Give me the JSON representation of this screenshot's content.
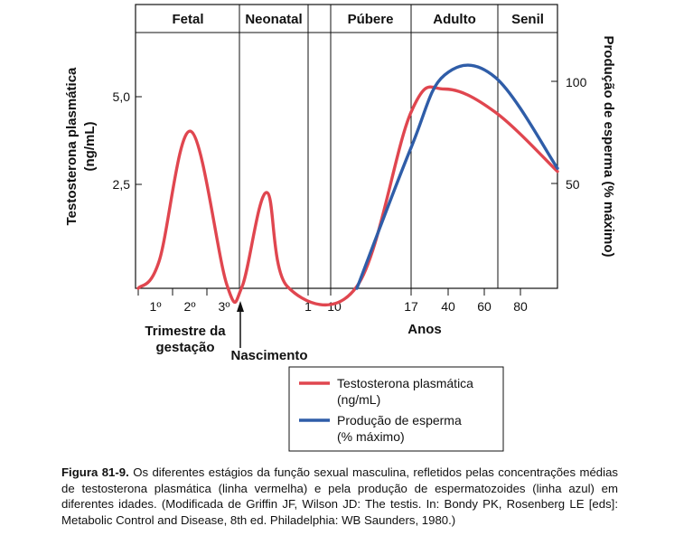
{
  "chart_data": {
    "type": "line",
    "stages": [
      "Fetal",
      "Neonatal",
      "Púbere",
      "Adulto",
      "Senil"
    ],
    "x_tick_labels": [
      "1º",
      "2º",
      "3º",
      "1",
      "10",
      "17",
      "40",
      "60",
      "80"
    ],
    "x_group_labels": {
      "trimester_line1": "Trimestre da",
      "trimester_line2": "gestação",
      "birth": "Nascimento",
      "years": "Anos"
    },
    "y_left": {
      "label_line1": "Testosterona plasmática",
      "label_line2": "(ng/mL)",
      "ticks": [
        2.5,
        5.0
      ],
      "tick_labels": [
        "2,5",
        "5,0"
      ],
      "ylim": [
        0,
        5.8
      ]
    },
    "y_right": {
      "label": "Produção de esperma (% máximo)",
      "ticks": [
        50,
        100
      ],
      "tick_labels": [
        "50",
        "100"
      ],
      "ylim": [
        0,
        116
      ]
    },
    "series": [
      {
        "name": "Testosterona plasmática (ng/mL)",
        "color": "#e0464f",
        "axis": "left",
        "points": [
          [
            "1º trimestre",
            0.0
          ],
          [
            "1º trimestre",
            0.7
          ],
          [
            "2º trimestre",
            4.1
          ],
          [
            "3º trimestre",
            0.1
          ],
          [
            "Nascimento",
            0.05
          ],
          [
            "Neonatal",
            2.5
          ],
          [
            "1 ano",
            0.05
          ],
          [
            "10 anos",
            0.05
          ],
          [
            "17 anos",
            4.6
          ],
          [
            "40 anos",
            5.2
          ],
          [
            "60 anos",
            4.6
          ],
          [
            "80+ anos",
            3.05
          ]
        ]
      },
      {
        "name": "Produção de esperma (% máximo)",
        "color": "#2f5da8",
        "axis": "right",
        "points": [
          [
            "10 anos",
            0
          ],
          [
            "17 anos",
            68
          ],
          [
            "40 anos",
            103
          ],
          [
            "60 anos",
            102
          ],
          [
            "80+ anos",
            58
          ]
        ]
      }
    ],
    "legend": {
      "placement": "bottom",
      "entries": [
        {
          "line1": "Testosterona plasmática",
          "line2": "(ng/mL)",
          "color": "#e0464f"
        },
        {
          "line1": "Produção de esperma",
          "line2": "(% máximo)",
          "color": "#2f5da8"
        }
      ]
    }
  },
  "caption": {
    "label": "Figura 81-9.",
    "text": " Os diferentes estágios da função sexual masculina, refletidos pelas concentrações médias de testosterona plasmática (linha vermelha) e pela produção de espermatozoides (linha azul) em diferentes idades. (Modificada de Griffin JF, Wilson JD: The testis. In: Bondy PK, Rosenberg LE [eds]: Metabolic Control and Disease, 8th ed. Philadelphia: WB Saunders, 1980.)"
  }
}
